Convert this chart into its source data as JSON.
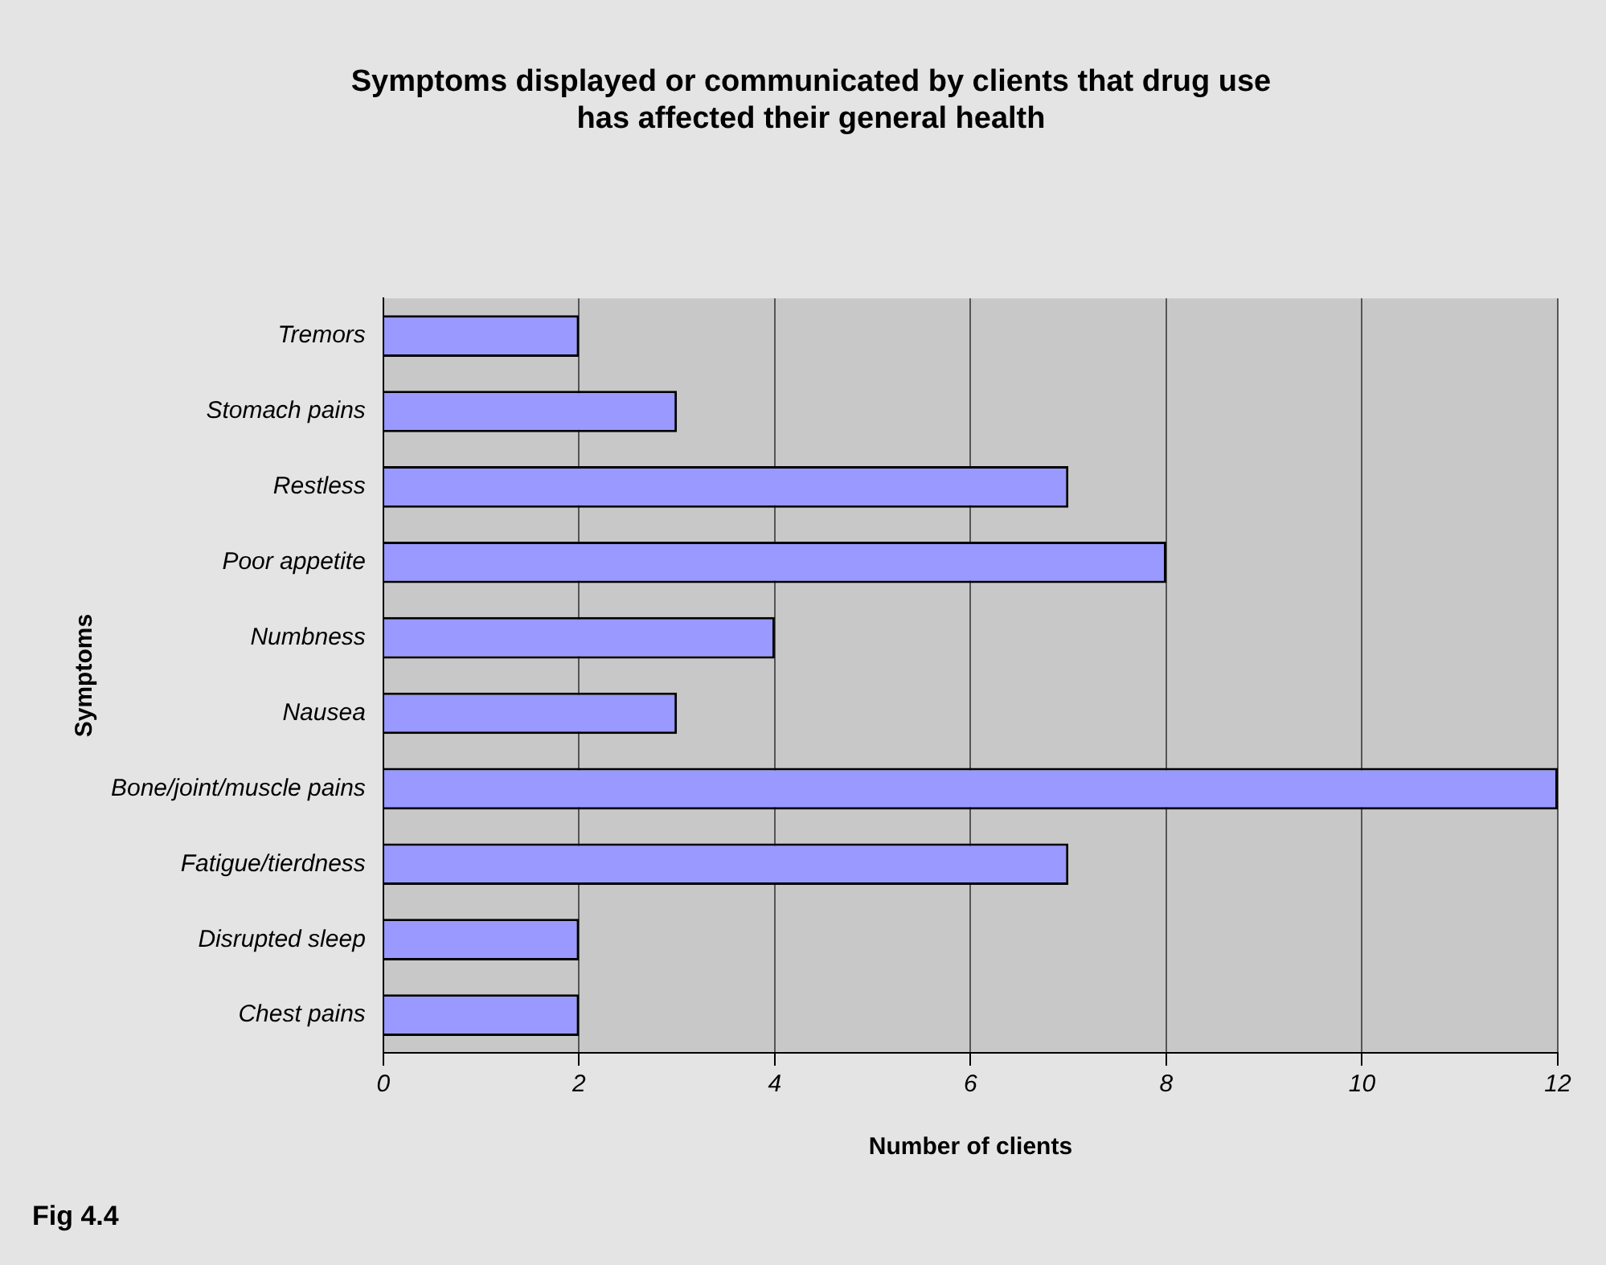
{
  "chart_data": {
    "type": "bar",
    "orientation": "horizontal",
    "title": "Symptoms displayed or communicated by clients that drug use\nhas affected their general health",
    "xlabel": "Number of clients",
    "ylabel": "Symptoms",
    "categories": [
      "Tremors",
      "Stomach pains",
      "Restless",
      "Poor appetite",
      "Numbness",
      "Nausea",
      "Bone/joint/muscle pains",
      "Fatigue/tierdness",
      "Disrupted sleep",
      "Chest pains"
    ],
    "values": [
      2,
      3,
      7,
      8,
      4,
      3,
      12,
      7,
      2,
      2
    ],
    "color": "#9999ff",
    "xlim": [
      0,
      12
    ],
    "xticks": [
      0,
      2,
      4,
      6,
      8,
      10,
      12
    ],
    "grid": "x",
    "legend": false,
    "annotations": [
      "Fig 4.4"
    ]
  }
}
